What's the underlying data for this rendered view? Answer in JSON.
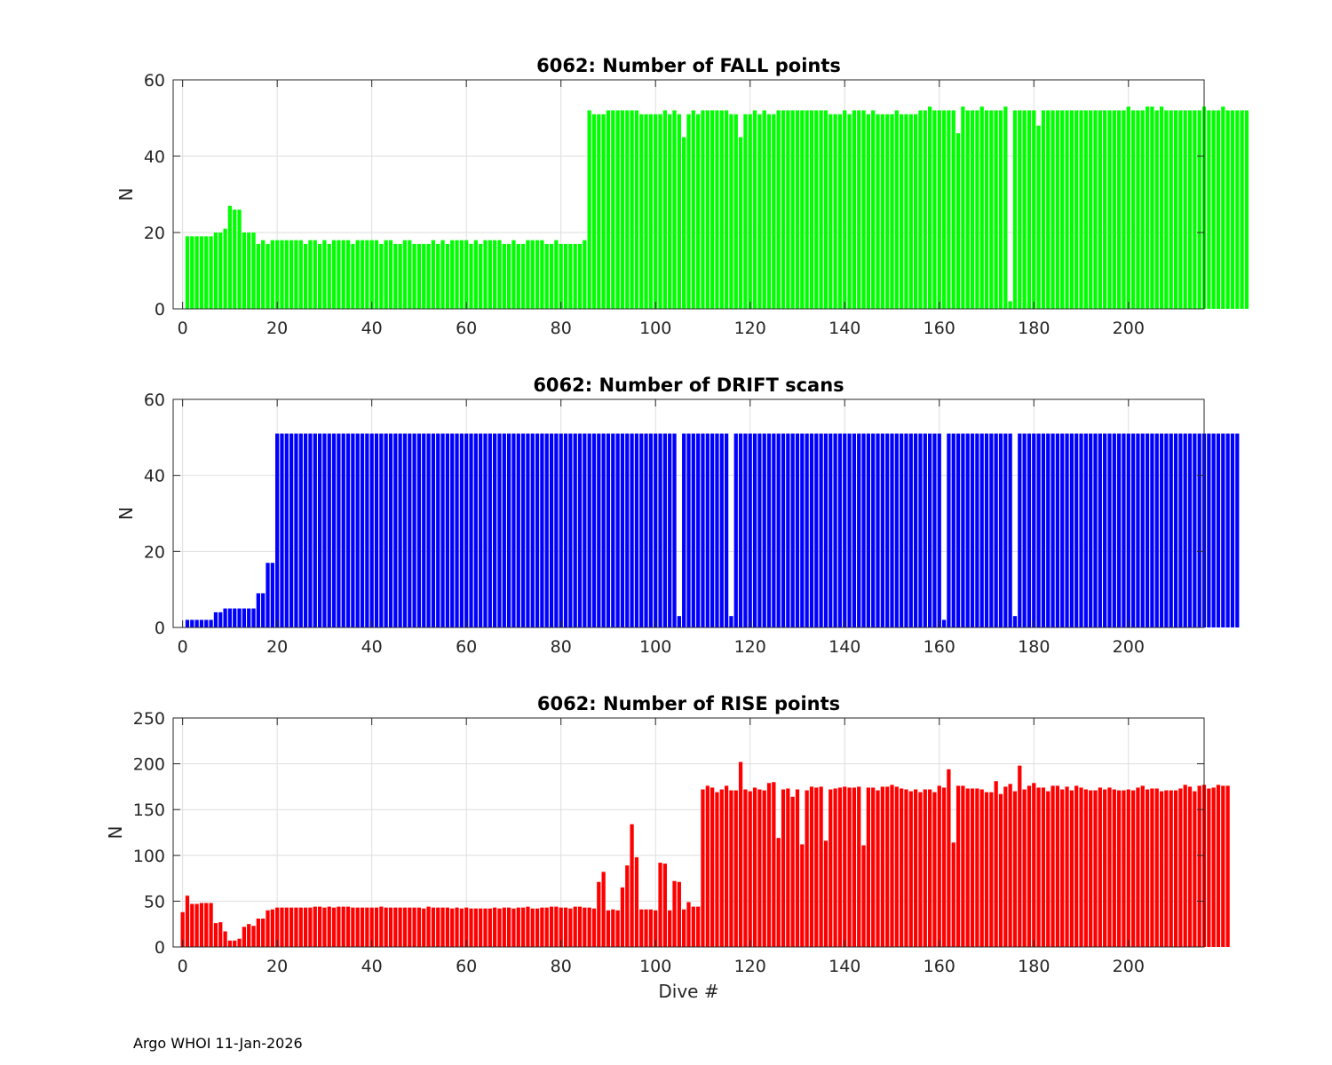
{
  "footer": "Argo WHOI 11-Jan-2026",
  "chart_data": [
    {
      "type": "bar",
      "title": "6062: Number of FALL points",
      "xlabel": "",
      "ylabel": "N",
      "color": "#00ff00",
      "xlim": [
        -2,
        216
      ],
      "ylim": [
        0,
        60
      ],
      "xticks": [
        0,
        20,
        40,
        60,
        80,
        100,
        120,
        140,
        160,
        180,
        200
      ],
      "yticks": [
        0,
        20,
        40,
        60
      ],
      "grid": true,
      "x_start": 0,
      "values": [
        0,
        19,
        19,
        19,
        19,
        19,
        19,
        20,
        20,
        21,
        27,
        26,
        26,
        20,
        20,
        20,
        17,
        18,
        17,
        18,
        18,
        18,
        18,
        18,
        18,
        18,
        17,
        18,
        18,
        17,
        18,
        17,
        18,
        18,
        18,
        18,
        17,
        18,
        18,
        18,
        18,
        18,
        17,
        18,
        18,
        17,
        17,
        18,
        18,
        17,
        17,
        17,
        17,
        18,
        17,
        18,
        17,
        18,
        18,
        18,
        18,
        17,
        18,
        17,
        18,
        18,
        18,
        18,
        17,
        17,
        18,
        17,
        17,
        18,
        18,
        18,
        18,
        17,
        17,
        18,
        17,
        17,
        17,
        17,
        17,
        18,
        52,
        51,
        51,
        51,
        52,
        52,
        52,
        52,
        52,
        52,
        52,
        51,
        51,
        51,
        51,
        51,
        52,
        51,
        52,
        51,
        45,
        51,
        52,
        51,
        52,
        52,
        52,
        52,
        52,
        52,
        51,
        51,
        45,
        51,
        51,
        52,
        51,
        52,
        51,
        51,
        52,
        52,
        52,
        52,
        52,
        52,
        52,
        52,
        52,
        52,
        52,
        51,
        51,
        51,
        52,
        51,
        52,
        52,
        52,
        51,
        52,
        51,
        51,
        51,
        51,
        52,
        51,
        51,
        51,
        51,
        52,
        52,
        53,
        52,
        52,
        52,
        52,
        52,
        46,
        53,
        52,
        52,
        52,
        53,
        52,
        52,
        52,
        52,
        53,
        2,
        52,
        52,
        52,
        52,
        52,
        48,
        52,
        52,
        52,
        52,
        52,
        52,
        52,
        52,
        52,
        52,
        52,
        52,
        52,
        52,
        52,
        52,
        52,
        52,
        53,
        52,
        52,
        52,
        53,
        53,
        52,
        53,
        52,
        52,
        52,
        52,
        52,
        52,
        52,
        52,
        53,
        52,
        52,
        52,
        53,
        52,
        52,
        52,
        52,
        52
      ]
    },
    {
      "type": "bar",
      "title": "6062: Number of DRIFT scans",
      "xlabel": "",
      "ylabel": "N",
      "color": "#0000ff",
      "xlim": [
        -2,
        216
      ],
      "ylim": [
        0,
        60
      ],
      "xticks": [
        0,
        20,
        40,
        60,
        80,
        100,
        120,
        140,
        160,
        180,
        200
      ],
      "yticks": [
        0,
        20,
        40,
        60
      ],
      "grid": true,
      "x_start": 0,
      "values": [
        0,
        2,
        2,
        2,
        2,
        2,
        2,
        4,
        4,
        5,
        5,
        5,
        5,
        5,
        5,
        5,
        9,
        9,
        17,
        17,
        51,
        51,
        51,
        51,
        51,
        51,
        51,
        51,
        51,
        51,
        51,
        51,
        51,
        51,
        51,
        51,
        51,
        51,
        51,
        51,
        51,
        51,
        51,
        51,
        51,
        51,
        51,
        51,
        51,
        51,
        51,
        51,
        51,
        51,
        51,
        51,
        51,
        51,
        51,
        51,
        51,
        51,
        51,
        51,
        51,
        51,
        51,
        51,
        51,
        51,
        51,
        51,
        51,
        51,
        51,
        51,
        51,
        51,
        51,
        51,
        51,
        51,
        51,
        51,
        51,
        51,
        51,
        51,
        51,
        51,
        51,
        51,
        51,
        51,
        51,
        51,
        51,
        51,
        51,
        51,
        51,
        51,
        51,
        51,
        51,
        3,
        51,
        51,
        51,
        51,
        51,
        51,
        51,
        51,
        51,
        51,
        3,
        51,
        51,
        51,
        51,
        51,
        51,
        51,
        51,
        51,
        51,
        51,
        51,
        51,
        51,
        51,
        51,
        51,
        51,
        51,
        51,
        51,
        51,
        51,
        51,
        51,
        51,
        51,
        51,
        51,
        51,
        51,
        51,
        51,
        51,
        51,
        51,
        51,
        51,
        51,
        51,
        51,
        51,
        51,
        51,
        2,
        51,
        51,
        51,
        51,
        51,
        51,
        51,
        51,
        51,
        51,
        51,
        51,
        51,
        51,
        3,
        51,
        51,
        51,
        51,
        51,
        51,
        51,
        51,
        51,
        51,
        51,
        51,
        51,
        51,
        51,
        51,
        51,
        51,
        51,
        51,
        51,
        51,
        51,
        51,
        51,
        51,
        51,
        51,
        51,
        51,
        51,
        51,
        51,
        51,
        51,
        51,
        51,
        51,
        51,
        51,
        51,
        51,
        51,
        51,
        51,
        51,
        51
      ]
    },
    {
      "type": "bar",
      "title": "6062: Number of RISE points",
      "xlabel": "Dive #",
      "ylabel": "N",
      "color": "#ff0000",
      "xlim": [
        -2,
        216
      ],
      "ylim": [
        0,
        250
      ],
      "xticks": [
        0,
        20,
        40,
        60,
        80,
        100,
        120,
        140,
        160,
        180,
        200
      ],
      "yticks": [
        0,
        50,
        100,
        150,
        200,
        250
      ],
      "grid": true,
      "x_start": 0,
      "values": [
        38,
        56,
        47,
        47,
        48,
        48,
        48,
        26,
        27,
        17,
        7,
        7,
        9,
        22,
        25,
        23,
        31,
        31,
        40,
        41,
        43,
        43,
        43,
        43,
        43,
        43,
        43,
        43,
        44,
        44,
        43,
        44,
        43,
        44,
        44,
        44,
        43,
        43,
        43,
        43,
        43,
        43,
        44,
        43,
        43,
        43,
        43,
        43,
        43,
        43,
        43,
        42,
        44,
        43,
        43,
        43,
        43,
        42,
        43,
        42,
        43,
        42,
        42,
        42,
        42,
        42,
        43,
        42,
        43,
        43,
        42,
        43,
        43,
        44,
        42,
        42,
        43,
        43,
        44,
        44,
        43,
        43,
        42,
        44,
        44,
        43,
        43,
        42,
        71,
        82,
        40,
        41,
        40,
        65,
        89,
        134,
        98,
        41,
        41,
        41,
        40,
        92,
        91,
        40,
        72,
        71,
        41,
        49,
        44,
        44,
        172,
        176,
        174,
        169,
        172,
        176,
        171,
        171,
        202,
        172,
        170,
        174,
        172,
        171,
        179,
        180,
        119,
        172,
        173,
        164,
        172,
        112,
        171,
        175,
        174,
        175,
        116,
        172,
        173,
        174,
        175,
        174,
        174,
        175,
        111,
        174,
        174,
        171,
        175,
        175,
        177,
        175,
        173,
        172,
        170,
        172,
        169,
        172,
        172,
        169,
        176,
        174,
        194,
        114,
        176,
        176,
        173,
        173,
        173,
        172,
        169,
        169,
        181,
        167,
        175,
        178,
        170,
        198,
        172,
        176,
        179,
        174,
        174,
        170,
        176,
        176,
        172,
        175,
        171,
        176,
        174,
        172,
        171,
        171,
        174,
        172,
        174,
        172,
        171,
        171,
        172,
        171,
        174,
        176,
        172,
        173,
        173,
        170,
        171,
        171,
        171,
        173,
        177,
        175,
        170,
        176,
        177,
        173,
        174,
        177,
        176,
        176
      ]
    }
  ]
}
